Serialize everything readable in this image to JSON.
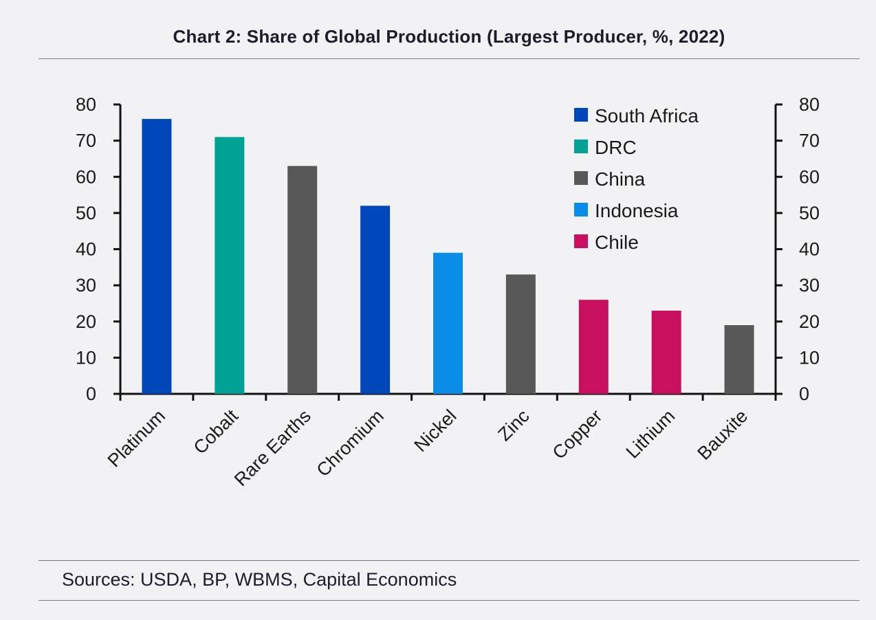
{
  "title": "Chart 2: Share of Global Production (Largest Producer, %, 2022)",
  "source": "Sources: USDA, BP, WBMS, Capital Economics",
  "colors": {
    "South Africa": "#0047bb",
    "DRC": "#00a294",
    "China": "#585858",
    "Indonesia": "#0a8ce9",
    "Chile": "#c8105e"
  },
  "chart_data": {
    "type": "bar",
    "title": "Chart 2: Share of Global Production (Largest Producer, %, 2022)",
    "categories": [
      "Platinum",
      "Cobalt",
      "Rare Earths",
      "Chromium",
      "Nickel",
      "Zinc",
      "Copper",
      "Lithium",
      "Bauxite"
    ],
    "values": [
      76,
      71,
      63,
      52,
      39,
      33,
      26,
      23,
      19
    ],
    "producers": [
      "South Africa",
      "DRC",
      "China",
      "South Africa",
      "Indonesia",
      "China",
      "Chile",
      "Chile",
      "China"
    ],
    "legend": [
      "South Africa",
      "DRC",
      "China",
      "Indonesia",
      "Chile"
    ],
    "legend_position": "top-right",
    "ylim": [
      0,
      80
    ],
    "yticks": [
      0,
      10,
      20,
      30,
      40,
      50,
      60,
      70,
      80
    ],
    "secondary_y_axis": true,
    "grid": false,
    "xlabel": "",
    "ylabel": ""
  }
}
